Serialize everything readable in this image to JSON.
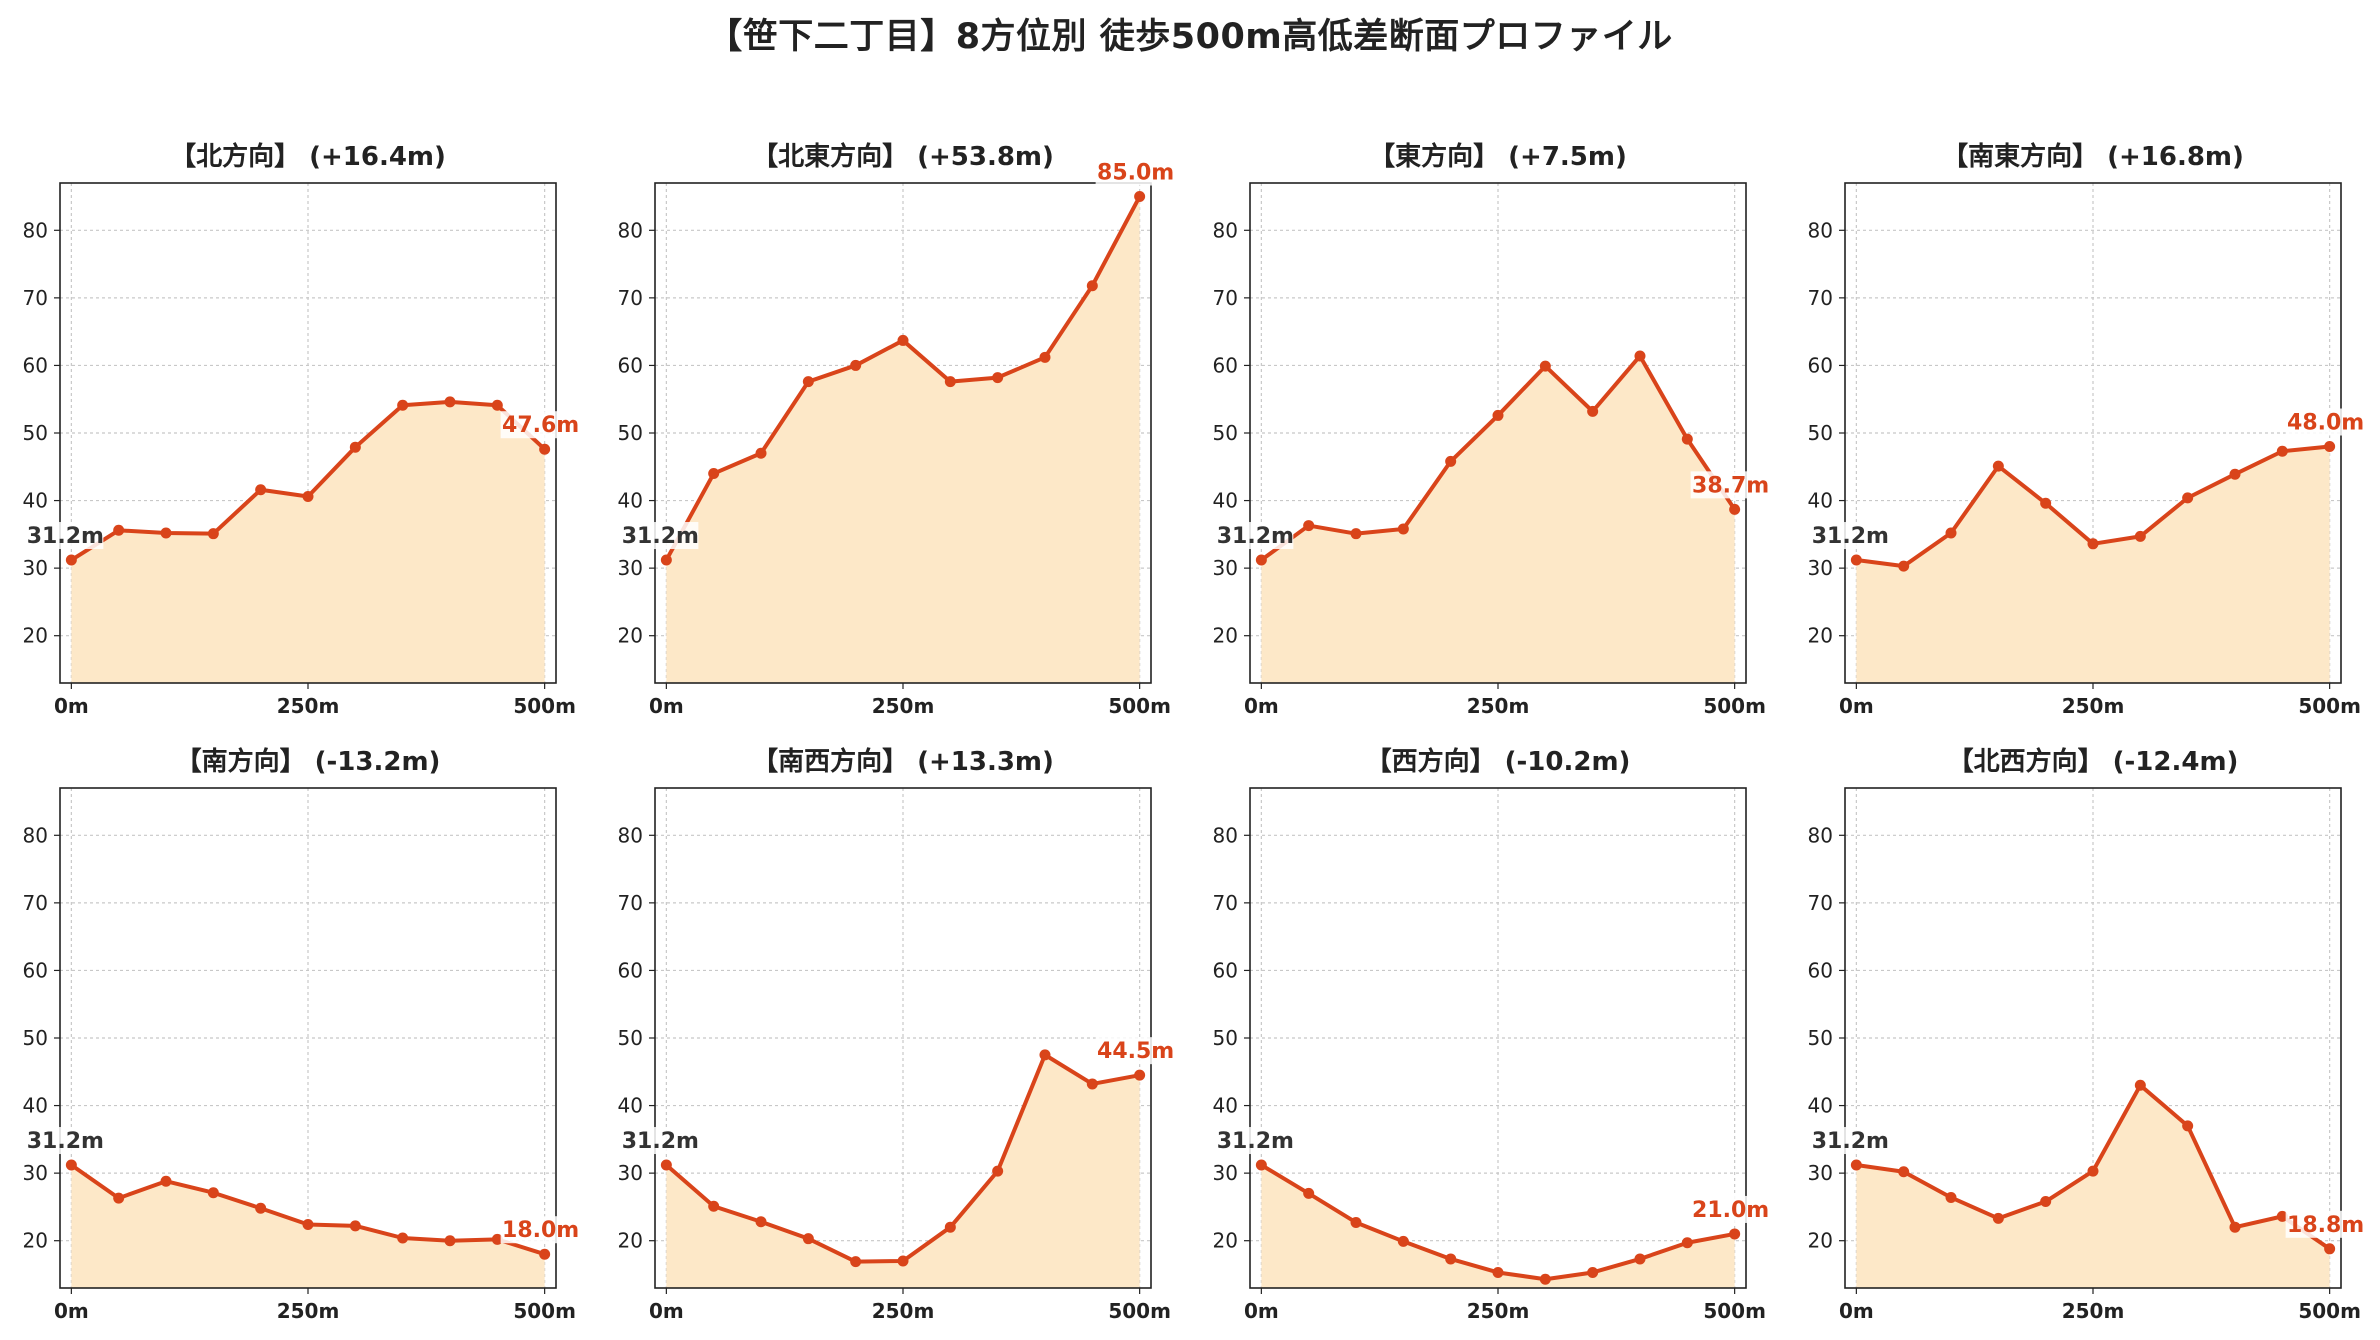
{
  "title": "【笹下二丁目】8方位別 徒歩500m高低差断面プロファイル",
  "colors": {
    "line": "#d9441a",
    "fill": "#fde8c8",
    "grid": "#c8c8c8",
    "start_label": "#333333",
    "end_label": "#d9441a"
  },
  "chart_data": [
    {
      "type": "area",
      "title": "【北方向】 (+16.4m)",
      "x": [
        0,
        50,
        100,
        150,
        200,
        250,
        300,
        350,
        400,
        450,
        500
      ],
      "values": [
        31.2,
        35.6,
        35.2,
        35.1,
        41.6,
        40.6,
        47.9,
        54.1,
        54.6,
        54.1,
        47.6
      ],
      "start_label": "31.2m",
      "end_label": "47.6m",
      "xticks": [
        "0m",
        "250m",
        "500m"
      ],
      "yticks": [
        20,
        30,
        40,
        50,
        60,
        70,
        80
      ],
      "ylim": [
        13,
        87
      ],
      "xlim": [
        -12,
        512
      ],
      "grid": true
    },
    {
      "type": "area",
      "title": "【北東方向】 (+53.8m)",
      "x": [
        0,
        50,
        100,
        150,
        200,
        250,
        300,
        350,
        400,
        450,
        500
      ],
      "values": [
        31.2,
        44.0,
        47.0,
        57.6,
        60.0,
        63.7,
        57.6,
        58.2,
        61.2,
        71.8,
        85.0
      ],
      "start_label": "31.2m",
      "end_label": "85.0m",
      "xticks": [
        "0m",
        "250m",
        "500m"
      ],
      "yticks": [
        20,
        30,
        40,
        50,
        60,
        70,
        80
      ],
      "ylim": [
        13,
        87
      ],
      "xlim": [
        -12,
        512
      ],
      "grid": true
    },
    {
      "type": "area",
      "title": "【東方向】 (+7.5m)",
      "x": [
        0,
        50,
        100,
        150,
        200,
        250,
        300,
        350,
        400,
        450,
        500
      ],
      "values": [
        31.2,
        36.3,
        35.1,
        35.8,
        45.8,
        52.6,
        59.9,
        53.2,
        61.4,
        49.1,
        38.7
      ],
      "start_label": "31.2m",
      "end_label": "38.7m",
      "xticks": [
        "0m",
        "250m",
        "500m"
      ],
      "yticks": [
        20,
        30,
        40,
        50,
        60,
        70,
        80
      ],
      "ylim": [
        13,
        87
      ],
      "xlim": [
        -12,
        512
      ],
      "grid": true
    },
    {
      "type": "area",
      "title": "【南東方向】 (+16.8m)",
      "x": [
        0,
        50,
        100,
        150,
        200,
        250,
        300,
        350,
        400,
        450,
        500
      ],
      "values": [
        31.2,
        30.3,
        35.2,
        45.1,
        39.6,
        33.6,
        34.7,
        40.4,
        43.9,
        47.3,
        48.0
      ],
      "start_label": "31.2m",
      "end_label": "48.0m",
      "xticks": [
        "0m",
        "250m",
        "500m"
      ],
      "yticks": [
        20,
        30,
        40,
        50,
        60,
        70,
        80
      ],
      "ylim": [
        13,
        87
      ],
      "xlim": [
        -12,
        512
      ],
      "grid": true
    },
    {
      "type": "area",
      "title": "【南方向】 (-13.2m)",
      "x": [
        0,
        50,
        100,
        150,
        200,
        250,
        300,
        350,
        400,
        450,
        500
      ],
      "values": [
        31.2,
        26.3,
        28.8,
        27.1,
        24.8,
        22.4,
        22.2,
        20.4,
        20.0,
        20.2,
        18.0
      ],
      "start_label": "31.2m",
      "end_label": "18.0m",
      "xticks": [
        "0m",
        "250m",
        "500m"
      ],
      "yticks": [
        20,
        30,
        40,
        50,
        60,
        70,
        80
      ],
      "ylim": [
        13,
        87
      ],
      "xlim": [
        -12,
        512
      ],
      "grid": true
    },
    {
      "type": "area",
      "title": "【南西方向】 (+13.3m)",
      "x": [
        0,
        50,
        100,
        150,
        200,
        250,
        300,
        350,
        400,
        450,
        500
      ],
      "values": [
        31.2,
        25.1,
        22.8,
        20.3,
        16.9,
        17.0,
        22.0,
        30.3,
        47.5,
        43.2,
        44.5
      ],
      "start_label": "31.2m",
      "end_label": "44.5m",
      "xticks": [
        "0m",
        "250m",
        "500m"
      ],
      "yticks": [
        20,
        30,
        40,
        50,
        60,
        70,
        80
      ],
      "ylim": [
        13,
        87
      ],
      "xlim": [
        -12,
        512
      ],
      "grid": true
    },
    {
      "type": "area",
      "title": "【西方向】 (-10.2m)",
      "x": [
        0,
        50,
        100,
        150,
        200,
        250,
        300,
        350,
        400,
        450,
        500
      ],
      "values": [
        31.2,
        27.0,
        22.7,
        19.9,
        17.3,
        15.3,
        14.3,
        15.3,
        17.3,
        19.7,
        21.0
      ],
      "start_label": "31.2m",
      "end_label": "21.0m",
      "xticks": [
        "0m",
        "250m",
        "500m"
      ],
      "yticks": [
        20,
        30,
        40,
        50,
        60,
        70,
        80
      ],
      "ylim": [
        13,
        87
      ],
      "xlim": [
        -12,
        512
      ],
      "grid": true
    },
    {
      "type": "area",
      "title": "【北西方向】 (-12.4m)",
      "x": [
        0,
        50,
        100,
        150,
        200,
        250,
        300,
        350,
        400,
        450,
        500
      ],
      "values": [
        31.2,
        30.2,
        26.4,
        23.3,
        25.8,
        30.3,
        43.0,
        37.0,
        22.0,
        23.6,
        18.8
      ],
      "start_label": "31.2m",
      "end_label": "18.8m",
      "xticks": [
        "0m",
        "250m",
        "500m"
      ],
      "yticks": [
        20,
        30,
        40,
        50,
        60,
        70,
        80
      ],
      "ylim": [
        13,
        87
      ],
      "xlim": [
        -12,
        512
      ],
      "grid": true
    }
  ]
}
